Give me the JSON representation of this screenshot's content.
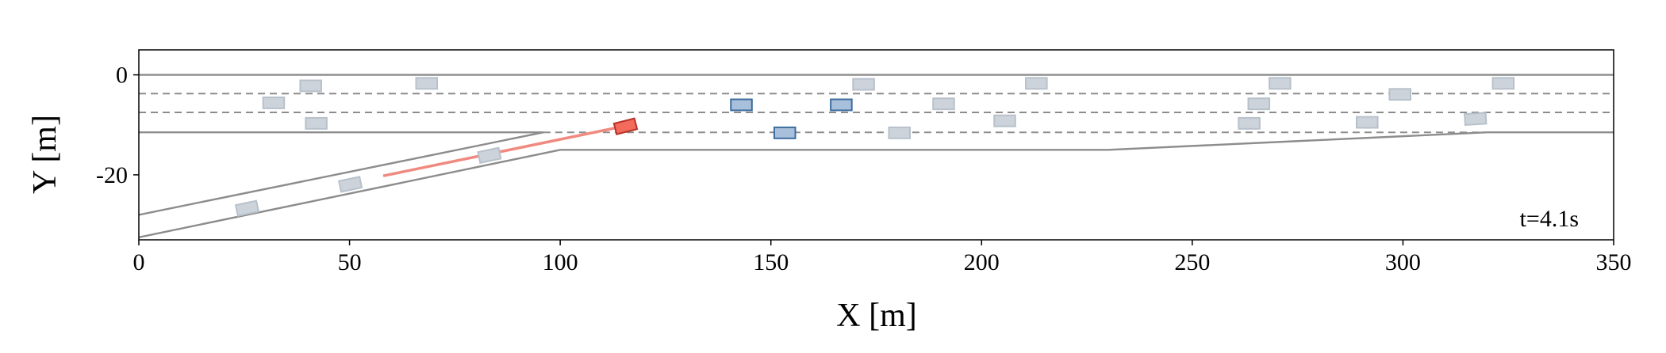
{
  "chart_data": {
    "type": "scatter",
    "xlabel": "X [m]",
    "ylabel": "Y [m]",
    "annotation": "t=4.1s",
    "xlim": [
      0,
      350
    ],
    "ylim": [
      -33,
      5
    ],
    "xticks": [
      0,
      50,
      100,
      150,
      200,
      250,
      300,
      350
    ],
    "yticks": [
      -20,
      0
    ],
    "road": [
      {
        "style": "solid",
        "color": "#8c8c8c",
        "x": [
          0,
          350
        ],
        "y": [
          0,
          0
        ]
      },
      {
        "style": "dashed",
        "color": "#8c8c8c",
        "x": [
          0,
          350
        ],
        "y": [
          -3.75,
          -3.75
        ]
      },
      {
        "style": "dashed",
        "color": "#8c8c8c",
        "x": [
          0,
          350
        ],
        "y": [
          -7.5,
          -7.5
        ]
      },
      {
        "style": "solid",
        "color": "#8c8c8c",
        "x": [
          0,
          96
        ],
        "y": [
          -11.5,
          -11.5
        ]
      },
      {
        "style": "dashed",
        "color": "#8c8c8c",
        "x": [
          96,
          320
        ],
        "y": [
          -11.5,
          -11.5
        ]
      },
      {
        "style": "solid",
        "color": "#8c8c8c",
        "x": [
          320,
          350
        ],
        "y": [
          -11.5,
          -11.5
        ]
      },
      {
        "style": "solid",
        "color": "#8c8c8c",
        "x": [
          0,
          96
        ],
        "y": [
          -28,
          -11.5
        ]
      },
      {
        "style": "solid",
        "color": "#8c8c8c",
        "x": [
          0,
          100,
          230,
          320
        ],
        "y": [
          -32.5,
          -15,
          -15,
          -11.5
        ]
      }
    ],
    "series": [
      {
        "kind": "line",
        "color": "#f08a80",
        "x": [
          58,
          115
        ],
        "y": [
          -20.2,
          -10.3
        ]
      },
      {
        "kind": "vehicle",
        "color": "#cdd3da",
        "edge": "#b8c1cb",
        "x": [
          25.7,
          50.2,
          83.2,
          32,
          40.8,
          42.1,
          68.3,
          172,
          191,
          180.5,
          205.5,
          213,
          265.8,
          263.5,
          270.8,
          291.5,
          299.3,
          317.2,
          323.8
        ],
        "y": [
          -26.7,
          -21.9,
          -16.1,
          -5.6,
          -2.2,
          -9.7,
          -1.7,
          -1.9,
          -5.8,
          -11.6,
          -9.2,
          -1.7,
          -5.8,
          -9.7,
          -1.7,
          -9.5,
          -3.9,
          -8.8,
          -1.7
        ],
        "heading": [
          10,
          10,
          10,
          0,
          0,
          0,
          0,
          0,
          0,
          0,
          0,
          0,
          0,
          0,
          0,
          0,
          0,
          3,
          0
        ]
      },
      {
        "kind": "vehicle",
        "color": "#a8c0dc",
        "edge": "#3d6d9e",
        "x": [
          143,
          166.7,
          153.3
        ],
        "y": [
          -6,
          -6,
          -11.6
        ],
        "heading": [
          0,
          0,
          0
        ]
      },
      {
        "kind": "vehicle",
        "color": "#f26b5b",
        "edge": "#b83228",
        "x": [
          115.5
        ],
        "y": [
          -10.3
        ],
        "heading": [
          12
        ]
      }
    ]
  }
}
